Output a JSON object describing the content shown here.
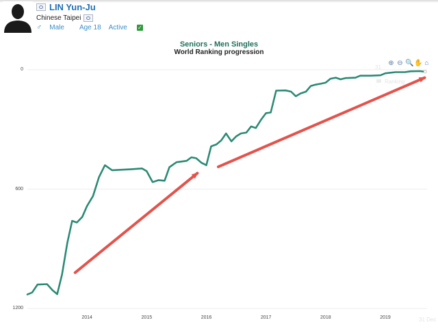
{
  "header": {
    "player_name": "LIN Yun-Ju",
    "country": "Chinese Taipei",
    "gender": "Male",
    "age": "Age 18",
    "status": "Active"
  },
  "icons": {
    "avatar": "silhouette-avatar",
    "flag": "chinese-taipei-flag",
    "gender": "male-symbol",
    "status": "checkmark"
  },
  "toolbar": {
    "zoom_in": "zoom-in-icon",
    "zoom_out": "zoom-out-icon",
    "magnify": "magnify-icon",
    "pan": "pan-hand-icon",
    "reset": "home-icon"
  },
  "colors": {
    "line": "#2a8a73",
    "arrow": "#e2443c",
    "grid": "#ececec",
    "title": "#1f6f5a"
  },
  "chart_data": {
    "type": "line",
    "title": "Seniors - Men Singles",
    "subtitle": "World Ranking progression",
    "y_inverted": true,
    "ylim": [
      0,
      1200
    ],
    "yticks": [
      "0",
      "600",
      "1200"
    ],
    "xticks": [
      {
        "label": "2014",
        "x": 2014.0
      },
      {
        "label": "2015",
        "x": 2015.0
      },
      {
        "label": "2016",
        "x": 2016.0
      },
      {
        "label": "2017",
        "x": 2017.0
      },
      {
        "label": "2018",
        "x": 2018.0
      },
      {
        "label": "2019",
        "x": 2019.0
      }
    ],
    "xlim": [
      2013.0,
      2019.7
    ],
    "series": [
      {
        "name": "Ranking",
        "points": [
          [
            2013.0,
            1130
          ],
          [
            2013.08,
            1120
          ],
          [
            2013.17,
            1080
          ],
          [
            2013.33,
            1078
          ],
          [
            2013.42,
            1108
          ],
          [
            2013.5,
            1128
          ],
          [
            2013.58,
            1030
          ],
          [
            2013.67,
            870
          ],
          [
            2013.75,
            760
          ],
          [
            2013.83,
            768
          ],
          [
            2013.92,
            740
          ],
          [
            2014.0,
            685
          ],
          [
            2014.1,
            635
          ],
          [
            2014.2,
            540
          ],
          [
            2014.3,
            480
          ],
          [
            2014.42,
            505
          ],
          [
            2014.75,
            500
          ],
          [
            2014.92,
            496
          ],
          [
            2015.0,
            510
          ],
          [
            2015.1,
            565
          ],
          [
            2015.2,
            555
          ],
          [
            2015.3,
            558
          ],
          [
            2015.38,
            490
          ],
          [
            2015.5,
            465
          ],
          [
            2015.67,
            458
          ],
          [
            2015.75,
            440
          ],
          [
            2015.83,
            445
          ],
          [
            2015.92,
            468
          ],
          [
            2016.0,
            480
          ],
          [
            2016.08,
            385
          ],
          [
            2016.17,
            375
          ],
          [
            2016.25,
            355
          ],
          [
            2016.33,
            320
          ],
          [
            2016.42,
            360
          ],
          [
            2016.5,
            335
          ],
          [
            2016.58,
            320
          ],
          [
            2016.67,
            316
          ],
          [
            2016.75,
            285
          ],
          [
            2016.83,
            293
          ],
          [
            2016.92,
            250
          ],
          [
            2017.0,
            218
          ],
          [
            2017.08,
            215
          ],
          [
            2017.17,
            105
          ],
          [
            2017.33,
            104
          ],
          [
            2017.42,
            110
          ],
          [
            2017.5,
            133
          ],
          [
            2017.58,
            119
          ],
          [
            2017.67,
            110
          ],
          [
            2017.75,
            82
          ],
          [
            2017.83,
            75
          ],
          [
            2017.92,
            70
          ],
          [
            2018.0,
            65
          ],
          [
            2018.08,
            45
          ],
          [
            2018.17,
            40
          ],
          [
            2018.25,
            48
          ],
          [
            2018.33,
            42
          ],
          [
            2018.5,
            40
          ],
          [
            2018.58,
            30
          ],
          [
            2018.75,
            30
          ],
          [
            2018.92,
            28
          ],
          [
            2019.0,
            18
          ],
          [
            2019.17,
            12
          ],
          [
            2019.33,
            12
          ],
          [
            2019.42,
            8
          ],
          [
            2019.58,
            7
          ],
          [
            2019.67,
            10
          ]
        ]
      }
    ],
    "annotations": [
      {
        "type": "arrow",
        "from": [
          2013.8,
          1020
        ],
        "to": [
          2015.85,
          520
        ]
      },
      {
        "type": "arrow",
        "from": [
          2016.2,
          488
        ],
        "to": [
          2019.66,
          40
        ]
      }
    ],
    "legend": {
      "label": "Ranking",
      "position": "top-right",
      "faded": true
    },
    "faded_labels": [
      "31",
      "31 Dec"
    ]
  }
}
